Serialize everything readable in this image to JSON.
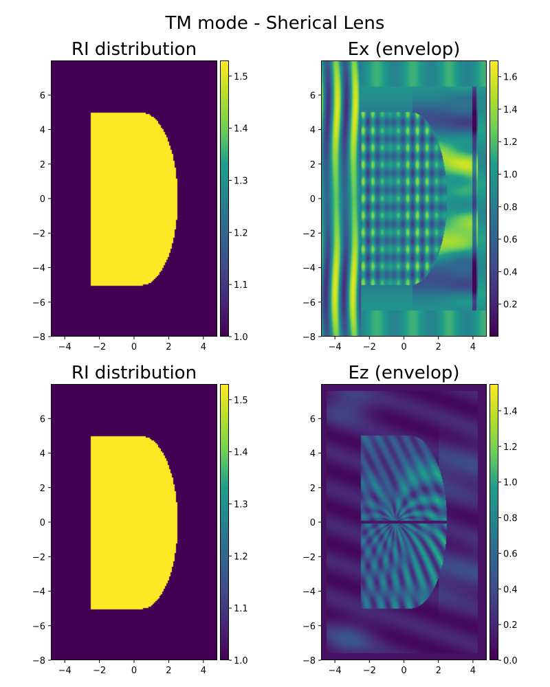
{
  "figure": {
    "title": "TM mode - Sherical Lens"
  },
  "palette": {
    "low": "#440154",
    "high": "#fde725",
    "viridis": [
      "#440154",
      "#482777",
      "#3f4a8a",
      "#31678e",
      "#26838f",
      "#1f9d8a",
      "#6cce5a",
      "#b6de2b",
      "#fee825"
    ]
  },
  "chart_data": [
    {
      "id": "ri-top",
      "type": "heatmap",
      "title": "RI distribution",
      "xlim": [
        -4.8,
        4.8
      ],
      "ylim": [
        -8,
        8
      ],
      "xticks": [
        -4,
        -2,
        0,
        2,
        4
      ],
      "xtick_labels": [
        "−4",
        "−2",
        "0",
        "2",
        "4"
      ],
      "yticks": [
        -8,
        -6,
        -4,
        -2,
        0,
        2,
        4,
        6
      ],
      "ytick_labels": [
        "−8",
        "−6",
        "−4",
        "−2",
        "0",
        "2",
        "4",
        "6"
      ],
      "field": "refractive-index",
      "lens": {
        "x_flat": -2.5,
        "half_height": 5,
        "cap_start_x": 0.4,
        "apex_x": 2.5,
        "n_inside": 1.53,
        "n_outside": 1.0
      },
      "colorbar": {
        "range": [
          1.0,
          1.53
        ],
        "ticks": [
          1.0,
          1.1,
          1.2,
          1.3,
          1.4,
          1.5
        ],
        "tick_labels": [
          "1.0",
          "1.1",
          "1.2",
          "1.3",
          "1.4",
          "1.5"
        ]
      }
    },
    {
      "id": "ex-top",
      "type": "heatmap",
      "title": "Ex (envelop)",
      "xlim": [
        -4.8,
        4.8
      ],
      "ylim": [
        -8,
        8
      ],
      "xticks": [
        -4,
        -2,
        0,
        2,
        4
      ],
      "xtick_labels": [
        "−4",
        "−2",
        "0",
        "2",
        "4"
      ],
      "yticks": [
        -8,
        -6,
        -4,
        -2,
        0,
        2,
        4,
        6
      ],
      "ytick_labels": [
        "−8",
        "−6",
        "−4",
        "−2",
        "0",
        "2",
        "4",
        "6"
      ],
      "field": "ex-envelope",
      "colorbar": {
        "range": [
          0.0,
          1.7
        ],
        "ticks": [
          0.2,
          0.4,
          0.6,
          0.8,
          1.0,
          1.2,
          1.4,
          1.6
        ],
        "tick_labels": [
          "0.2",
          "0.4",
          "0.6",
          "0.8",
          "1.0",
          "1.2",
          "1.4",
          "1.6"
        ]
      }
    },
    {
      "id": "ri-bottom",
      "type": "heatmap",
      "title": "RI distribution",
      "xlim": [
        -4.8,
        4.8
      ],
      "ylim": [
        -8,
        8
      ],
      "xticks": [
        -4,
        -2,
        0,
        2,
        4
      ],
      "xtick_labels": [
        "−4",
        "−2",
        "0",
        "2",
        "4"
      ],
      "yticks": [
        -8,
        -6,
        -4,
        -2,
        0,
        2,
        4,
        6
      ],
      "ytick_labels": [
        "−8",
        "−6",
        "−4",
        "−2",
        "0",
        "2",
        "4",
        "6"
      ],
      "field": "refractive-index",
      "lens": {
        "x_flat": -2.5,
        "half_height": 5,
        "cap_start_x": 0.4,
        "apex_x": 2.5,
        "n_inside": 1.53,
        "n_outside": 1.0
      },
      "colorbar": {
        "range": [
          1.0,
          1.53
        ],
        "ticks": [
          1.0,
          1.1,
          1.2,
          1.3,
          1.4,
          1.5
        ],
        "tick_labels": [
          "1.0",
          "1.1",
          "1.2",
          "1.3",
          "1.4",
          "1.5"
        ]
      }
    },
    {
      "id": "ez-bottom",
      "type": "heatmap",
      "title": "Ez (envelop)",
      "xlim": [
        -4.8,
        4.8
      ],
      "ylim": [
        -8,
        8
      ],
      "xticks": [
        -4,
        -2,
        0,
        2,
        4
      ],
      "xtick_labels": [
        "−4",
        "−2",
        "0",
        "2",
        "4"
      ],
      "yticks": [
        -8,
        -6,
        -4,
        -2,
        0,
        2,
        4,
        6
      ],
      "ytick_labels": [
        "−8",
        "−6",
        "−4",
        "−2",
        "0",
        "2",
        "4",
        "6"
      ],
      "field": "ez-envelope",
      "colorbar": {
        "range": [
          0.0,
          1.55
        ],
        "ticks": [
          0.0,
          0.2,
          0.4,
          0.6,
          0.8,
          1.0,
          1.2,
          1.4
        ],
        "tick_labels": [
          "0.0",
          "0.2",
          "0.4",
          "0.6",
          "0.8",
          "1.0",
          "1.2",
          "1.4"
        ]
      }
    }
  ]
}
